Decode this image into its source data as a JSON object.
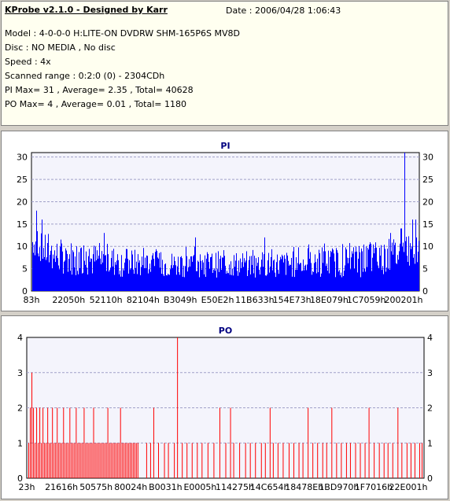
{
  "info": {
    "app_title": "KProbe v2.1.0 - Designed by Karr",
    "date_label": "Date : 2006/04/28 1:06:43",
    "lines": [
      "Model : 4-0-0-0 H:LITE-ON DVDRW SHM-165P6S MV8D",
      "Disc : NO MEDIA , No disc",
      "Speed : 4x",
      "Scanned range : 0:2:0 (0) - 2304CDh",
      "PI Max= 31 , Average= 2.35 , Total= 40628",
      "PO Max= 4 , Average= 0.01 , Total= 1180"
    ]
  },
  "colors": {
    "pi_bar": "#0000ff",
    "po_bar": "#ff0000",
    "grid": "#a0a0c8",
    "plot_bg": "#f4f4fc"
  },
  "chart_data": [
    {
      "type": "bar",
      "title": "PI",
      "ylim": [
        0,
        31
      ],
      "yticks": [
        0,
        5,
        10,
        15,
        20,
        25,
        30
      ],
      "grid": true,
      "xtick_labels": [
        "83h",
        "22050h",
        "52110h",
        "82104h",
        "B3049h",
        "E50E2h",
        "11B633h",
        "154E73h",
        "18E079h",
        "1C7059h",
        "200201h"
      ],
      "summary": {
        "max": 31,
        "average": 2.35,
        "total": 40628
      },
      "profile": [
        [
          0.0,
          8,
          11,
          18
        ],
        [
          0.05,
          4,
          8,
          12
        ],
        [
          0.15,
          3,
          7,
          11
        ],
        [
          0.3,
          3,
          6,
          10
        ],
        [
          0.5,
          3,
          6,
          10
        ],
        [
          0.7,
          3,
          6,
          11
        ],
        [
          0.85,
          3,
          7,
          11
        ],
        [
          0.93,
          4,
          8,
          13
        ],
        [
          0.97,
          5,
          9,
          16
        ],
        [
          1.0,
          4,
          7,
          12
        ]
      ],
      "peaks": [
        [
          0.01,
          18
        ],
        [
          0.025,
          16
        ],
        [
          0.185,
          13
        ],
        [
          0.42,
          12
        ],
        [
          0.6,
          12
        ],
        [
          0.925,
          13
        ],
        [
          0.952,
          14
        ],
        [
          0.962,
          31
        ],
        [
          0.982,
          16
        ],
        [
          0.99,
          16
        ]
      ]
    },
    {
      "type": "bar",
      "title": "PO",
      "ylim": [
        0,
        4
      ],
      "yticks": [
        0,
        1,
        2,
        3,
        4
      ],
      "grid": true,
      "xtick_labels": [
        "23h",
        "21616h",
        "50575h",
        "80024h",
        "B0031h",
        "E0005h",
        "114275h",
        "14C654h",
        "18478Eh",
        "1BD970h",
        "1F7016h",
        "22E001h"
      ],
      "summary": {
        "max": 4,
        "average": 0.01,
        "total": 1180
      },
      "values": [
        [
          0.002,
          1
        ],
        [
          0.006,
          2
        ],
        [
          0.01,
          3
        ],
        [
          0.014,
          2
        ],
        [
          0.018,
          1
        ],
        [
          0.022,
          2
        ],
        [
          0.026,
          1
        ],
        [
          0.03,
          2
        ],
        [
          0.034,
          1
        ],
        [
          0.038,
          2
        ],
        [
          0.042,
          1
        ],
        [
          0.046,
          1
        ],
        [
          0.05,
          2
        ],
        [
          0.054,
          1
        ],
        [
          0.058,
          1
        ],
        [
          0.062,
          2
        ],
        [
          0.066,
          1
        ],
        [
          0.07,
          1
        ],
        [
          0.074,
          2
        ],
        [
          0.078,
          1
        ],
        [
          0.082,
          1
        ],
        [
          0.086,
          1
        ],
        [
          0.09,
          2
        ],
        [
          0.094,
          1
        ],
        [
          0.098,
          1
        ],
        [
          0.102,
          1
        ],
        [
          0.106,
          2
        ],
        [
          0.11,
          1
        ],
        [
          0.114,
          1
        ],
        [
          0.118,
          1
        ],
        [
          0.122,
          2
        ],
        [
          0.126,
          1
        ],
        [
          0.13,
          1
        ],
        [
          0.134,
          1
        ],
        [
          0.138,
          1
        ],
        [
          0.142,
          2
        ],
        [
          0.146,
          1
        ],
        [
          0.15,
          1
        ],
        [
          0.154,
          1
        ],
        [
          0.158,
          1
        ],
        [
          0.162,
          1
        ],
        [
          0.166,
          2
        ],
        [
          0.17,
          1
        ],
        [
          0.174,
          1
        ],
        [
          0.178,
          1
        ],
        [
          0.182,
          1
        ],
        [
          0.186,
          1
        ],
        [
          0.19,
          1
        ],
        [
          0.194,
          1
        ],
        [
          0.198,
          1
        ],
        [
          0.202,
          2
        ],
        [
          0.206,
          1
        ],
        [
          0.21,
          1
        ],
        [
          0.214,
          1
        ],
        [
          0.218,
          1
        ],
        [
          0.222,
          1
        ],
        [
          0.226,
          1
        ],
        [
          0.23,
          1
        ],
        [
          0.234,
          2
        ],
        [
          0.238,
          1
        ],
        [
          0.242,
          1
        ],
        [
          0.246,
          1
        ],
        [
          0.25,
          1
        ],
        [
          0.254,
          1
        ],
        [
          0.258,
          1
        ],
        [
          0.262,
          1
        ],
        [
          0.266,
          1
        ],
        [
          0.27,
          1
        ],
        [
          0.274,
          1
        ],
        [
          0.278,
          1
        ],
        [
          0.3,
          1
        ],
        [
          0.31,
          1
        ],
        [
          0.318,
          2
        ],
        [
          0.33,
          1
        ],
        [
          0.345,
          1
        ],
        [
          0.355,
          1
        ],
        [
          0.37,
          1
        ],
        [
          0.378,
          4
        ],
        [
          0.39,
          1
        ],
        [
          0.402,
          1
        ],
        [
          0.415,
          1
        ],
        [
          0.428,
          1
        ],
        [
          0.44,
          1
        ],
        [
          0.455,
          1
        ],
        [
          0.47,
          1
        ],
        [
          0.485,
          2
        ],
        [
          0.5,
          1
        ],
        [
          0.512,
          2
        ],
        [
          0.52,
          1
        ],
        [
          0.535,
          1
        ],
        [
          0.55,
          1
        ],
        [
          0.562,
          1
        ],
        [
          0.575,
          1
        ],
        [
          0.59,
          1
        ],
        [
          0.6,
          1
        ],
        [
          0.612,
          2
        ],
        [
          0.62,
          1
        ],
        [
          0.632,
          1
        ],
        [
          0.645,
          1
        ],
        [
          0.66,
          1
        ],
        [
          0.672,
          1
        ],
        [
          0.685,
          1
        ],
        [
          0.695,
          1
        ],
        [
          0.708,
          2
        ],
        [
          0.72,
          1
        ],
        [
          0.732,
          1
        ],
        [
          0.745,
          1
        ],
        [
          0.755,
          1
        ],
        [
          0.768,
          2
        ],
        [
          0.78,
          1
        ],
        [
          0.792,
          1
        ],
        [
          0.805,
          1
        ],
        [
          0.815,
          1
        ],
        [
          0.828,
          1
        ],
        [
          0.84,
          1
        ],
        [
          0.852,
          1
        ],
        [
          0.862,
          2
        ],
        [
          0.875,
          1
        ],
        [
          0.888,
          1
        ],
        [
          0.9,
          1
        ],
        [
          0.91,
          1
        ],
        [
          0.922,
          1
        ],
        [
          0.935,
          2
        ],
        [
          0.945,
          1
        ],
        [
          0.958,
          1
        ],
        [
          0.968,
          1
        ],
        [
          0.978,
          1
        ],
        [
          0.99,
          1
        ],
        [
          0.996,
          1
        ]
      ]
    }
  ]
}
